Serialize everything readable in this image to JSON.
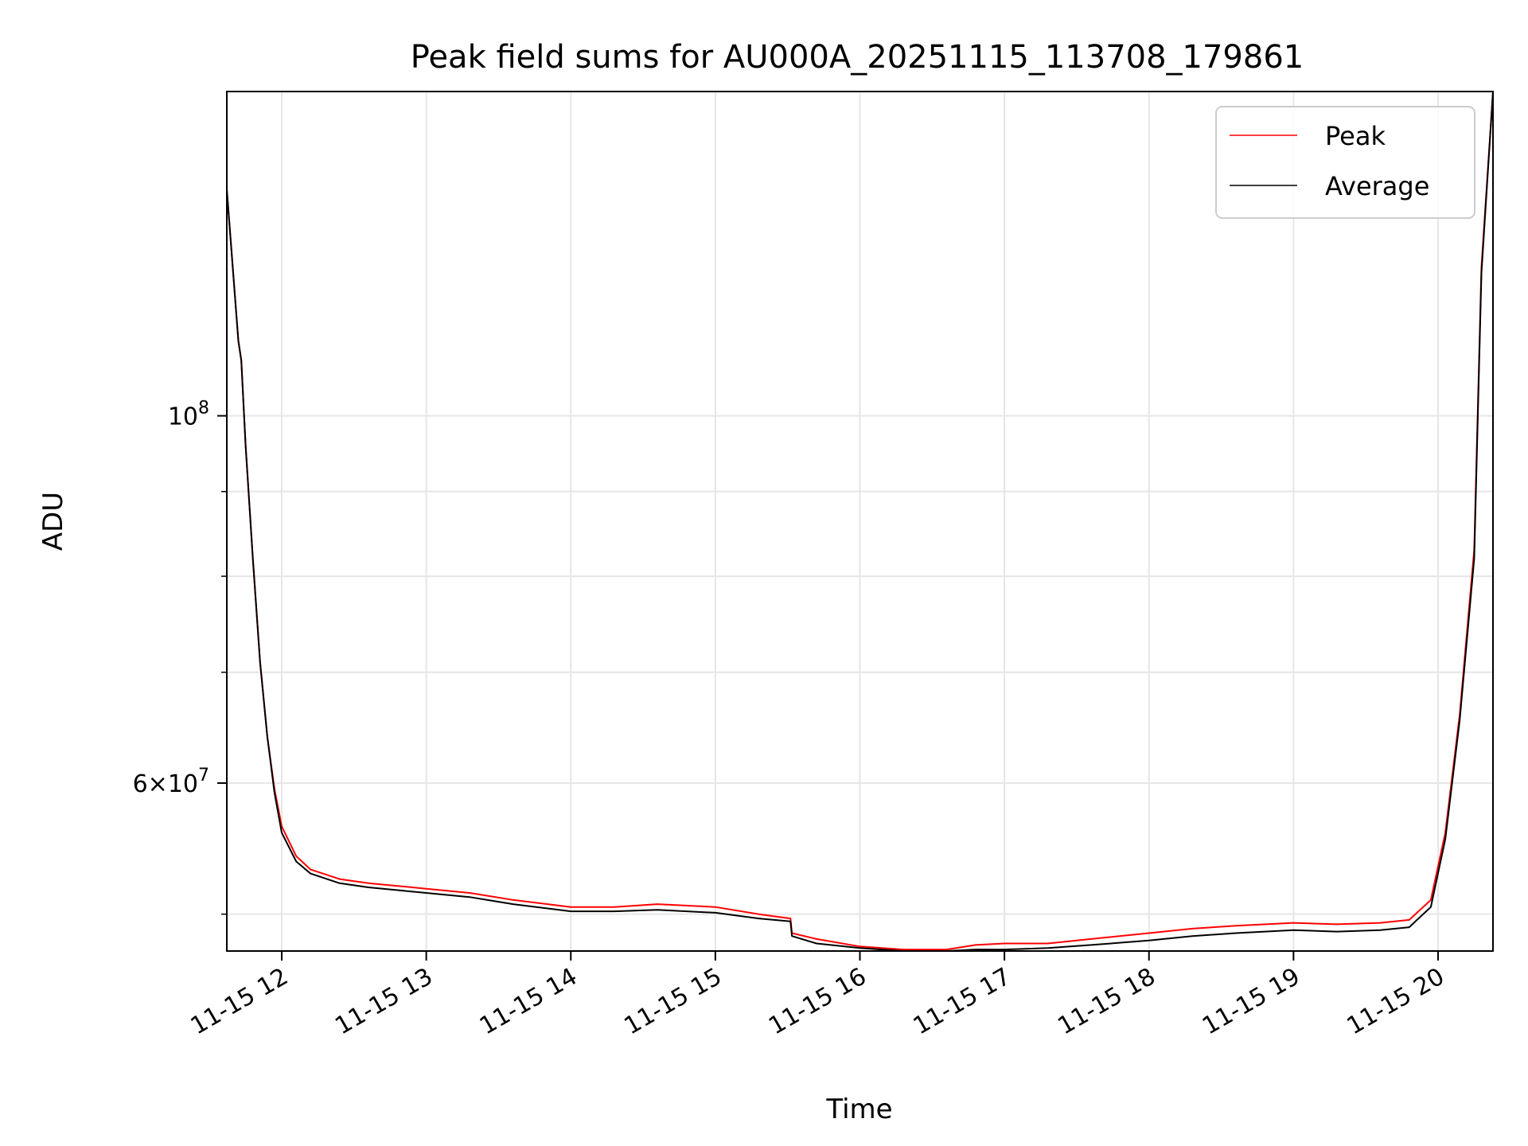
{
  "chart_data": {
    "type": "line",
    "title": "Peak field sums for AU000A_20251115_113708_179861",
    "xlabel": "Time",
    "ylabel": "ADU",
    "yscale": "log",
    "grid": true,
    "legend_position": "top-right",
    "xlim_hours": [
      11.62,
      20.38
    ],
    "ylim": [
      47500000,
      157000000
    ],
    "x_ticks": [
      {
        "hour": 12,
        "label": "11-15 12"
      },
      {
        "hour": 13,
        "label": "11-15 13"
      },
      {
        "hour": 14,
        "label": "11-15 14"
      },
      {
        "hour": 15,
        "label": "11-15 15"
      },
      {
        "hour": 16,
        "label": "11-15 16"
      },
      {
        "hour": 17,
        "label": "11-15 17"
      },
      {
        "hour": 18,
        "label": "11-15 18"
      },
      {
        "hour": 19,
        "label": "11-15 19"
      },
      {
        "hour": 20,
        "label": "11-15 20"
      }
    ],
    "y_major_ticks": [
      {
        "value": 100000000,
        "base": "10",
        "exponent": "8",
        "mantissa": ""
      },
      {
        "value": 60000000,
        "base": "10",
        "exponent": "7",
        "mantissa": "6×"
      }
    ],
    "y_minor_ticks": [
      50000000,
      70000000,
      80000000,
      90000000
    ],
    "series": [
      {
        "name": "Peak",
        "color": "#ff0000",
        "x_hours": [
          11.62,
          11.7,
          11.72,
          11.75,
          11.8,
          11.85,
          11.9,
          11.95,
          12.0,
          12.1,
          12.2,
          12.4,
          12.6,
          12.8,
          13.0,
          13.3,
          13.6,
          14.0,
          14.3,
          14.6,
          15.0,
          15.3,
          15.52,
          15.53,
          15.7,
          16.0,
          16.3,
          16.6,
          16.8,
          17.0,
          17.3,
          17.6,
          18.0,
          18.3,
          18.6,
          19.0,
          19.3,
          19.6,
          19.8,
          19.95,
          20.05,
          20.15,
          20.25,
          20.3,
          20.38
        ],
        "values": [
          137000000,
          111000000,
          108000000,
          96000000,
          82000000,
          71000000,
          64000000,
          59500000,
          56500000,
          54200000,
          53200000,
          52500000,
          52200000,
          52000000,
          51800000,
          51500000,
          51000000,
          50500000,
          50500000,
          50700000,
          50500000,
          50000000,
          49700000,
          48700000,
          48300000,
          47800000,
          47600000,
          47600000,
          47900000,
          48000000,
          48000000,
          48300000,
          48700000,
          49000000,
          49200000,
          49400000,
          49300000,
          49400000,
          49600000,
          51000000,
          56000000,
          66000000,
          83000000,
          123000000,
          157000000
        ]
      },
      {
        "name": "Average",
        "color": "#000000",
        "x_hours": [
          11.62,
          11.7,
          11.72,
          11.75,
          11.8,
          11.85,
          11.9,
          11.95,
          12.0,
          12.1,
          12.2,
          12.4,
          12.6,
          12.8,
          13.0,
          13.3,
          13.6,
          14.0,
          14.3,
          14.6,
          15.0,
          15.3,
          15.52,
          15.53,
          15.7,
          16.0,
          16.3,
          16.6,
          16.8,
          17.0,
          17.3,
          17.6,
          18.0,
          18.3,
          18.6,
          19.0,
          19.3,
          19.6,
          19.8,
          19.95,
          20.05,
          20.15,
          20.25,
          20.3,
          20.38
        ],
        "values": [
          137000000,
          111000000,
          108000000,
          96000000,
          82000000,
          71000000,
          64000000,
          59200000,
          56000000,
          53800000,
          52900000,
          52200000,
          51900000,
          51700000,
          51500000,
          51200000,
          50700000,
          50200000,
          50200000,
          50300000,
          50100000,
          49700000,
          49500000,
          48500000,
          48000000,
          47700000,
          47500000,
          47500000,
          47600000,
          47600000,
          47700000,
          47900000,
          48200000,
          48500000,
          48700000,
          48900000,
          48800000,
          48900000,
          49100000,
          50500000,
          55500000,
          65500000,
          82000000,
          122000000,
          157000000
        ]
      }
    ]
  }
}
